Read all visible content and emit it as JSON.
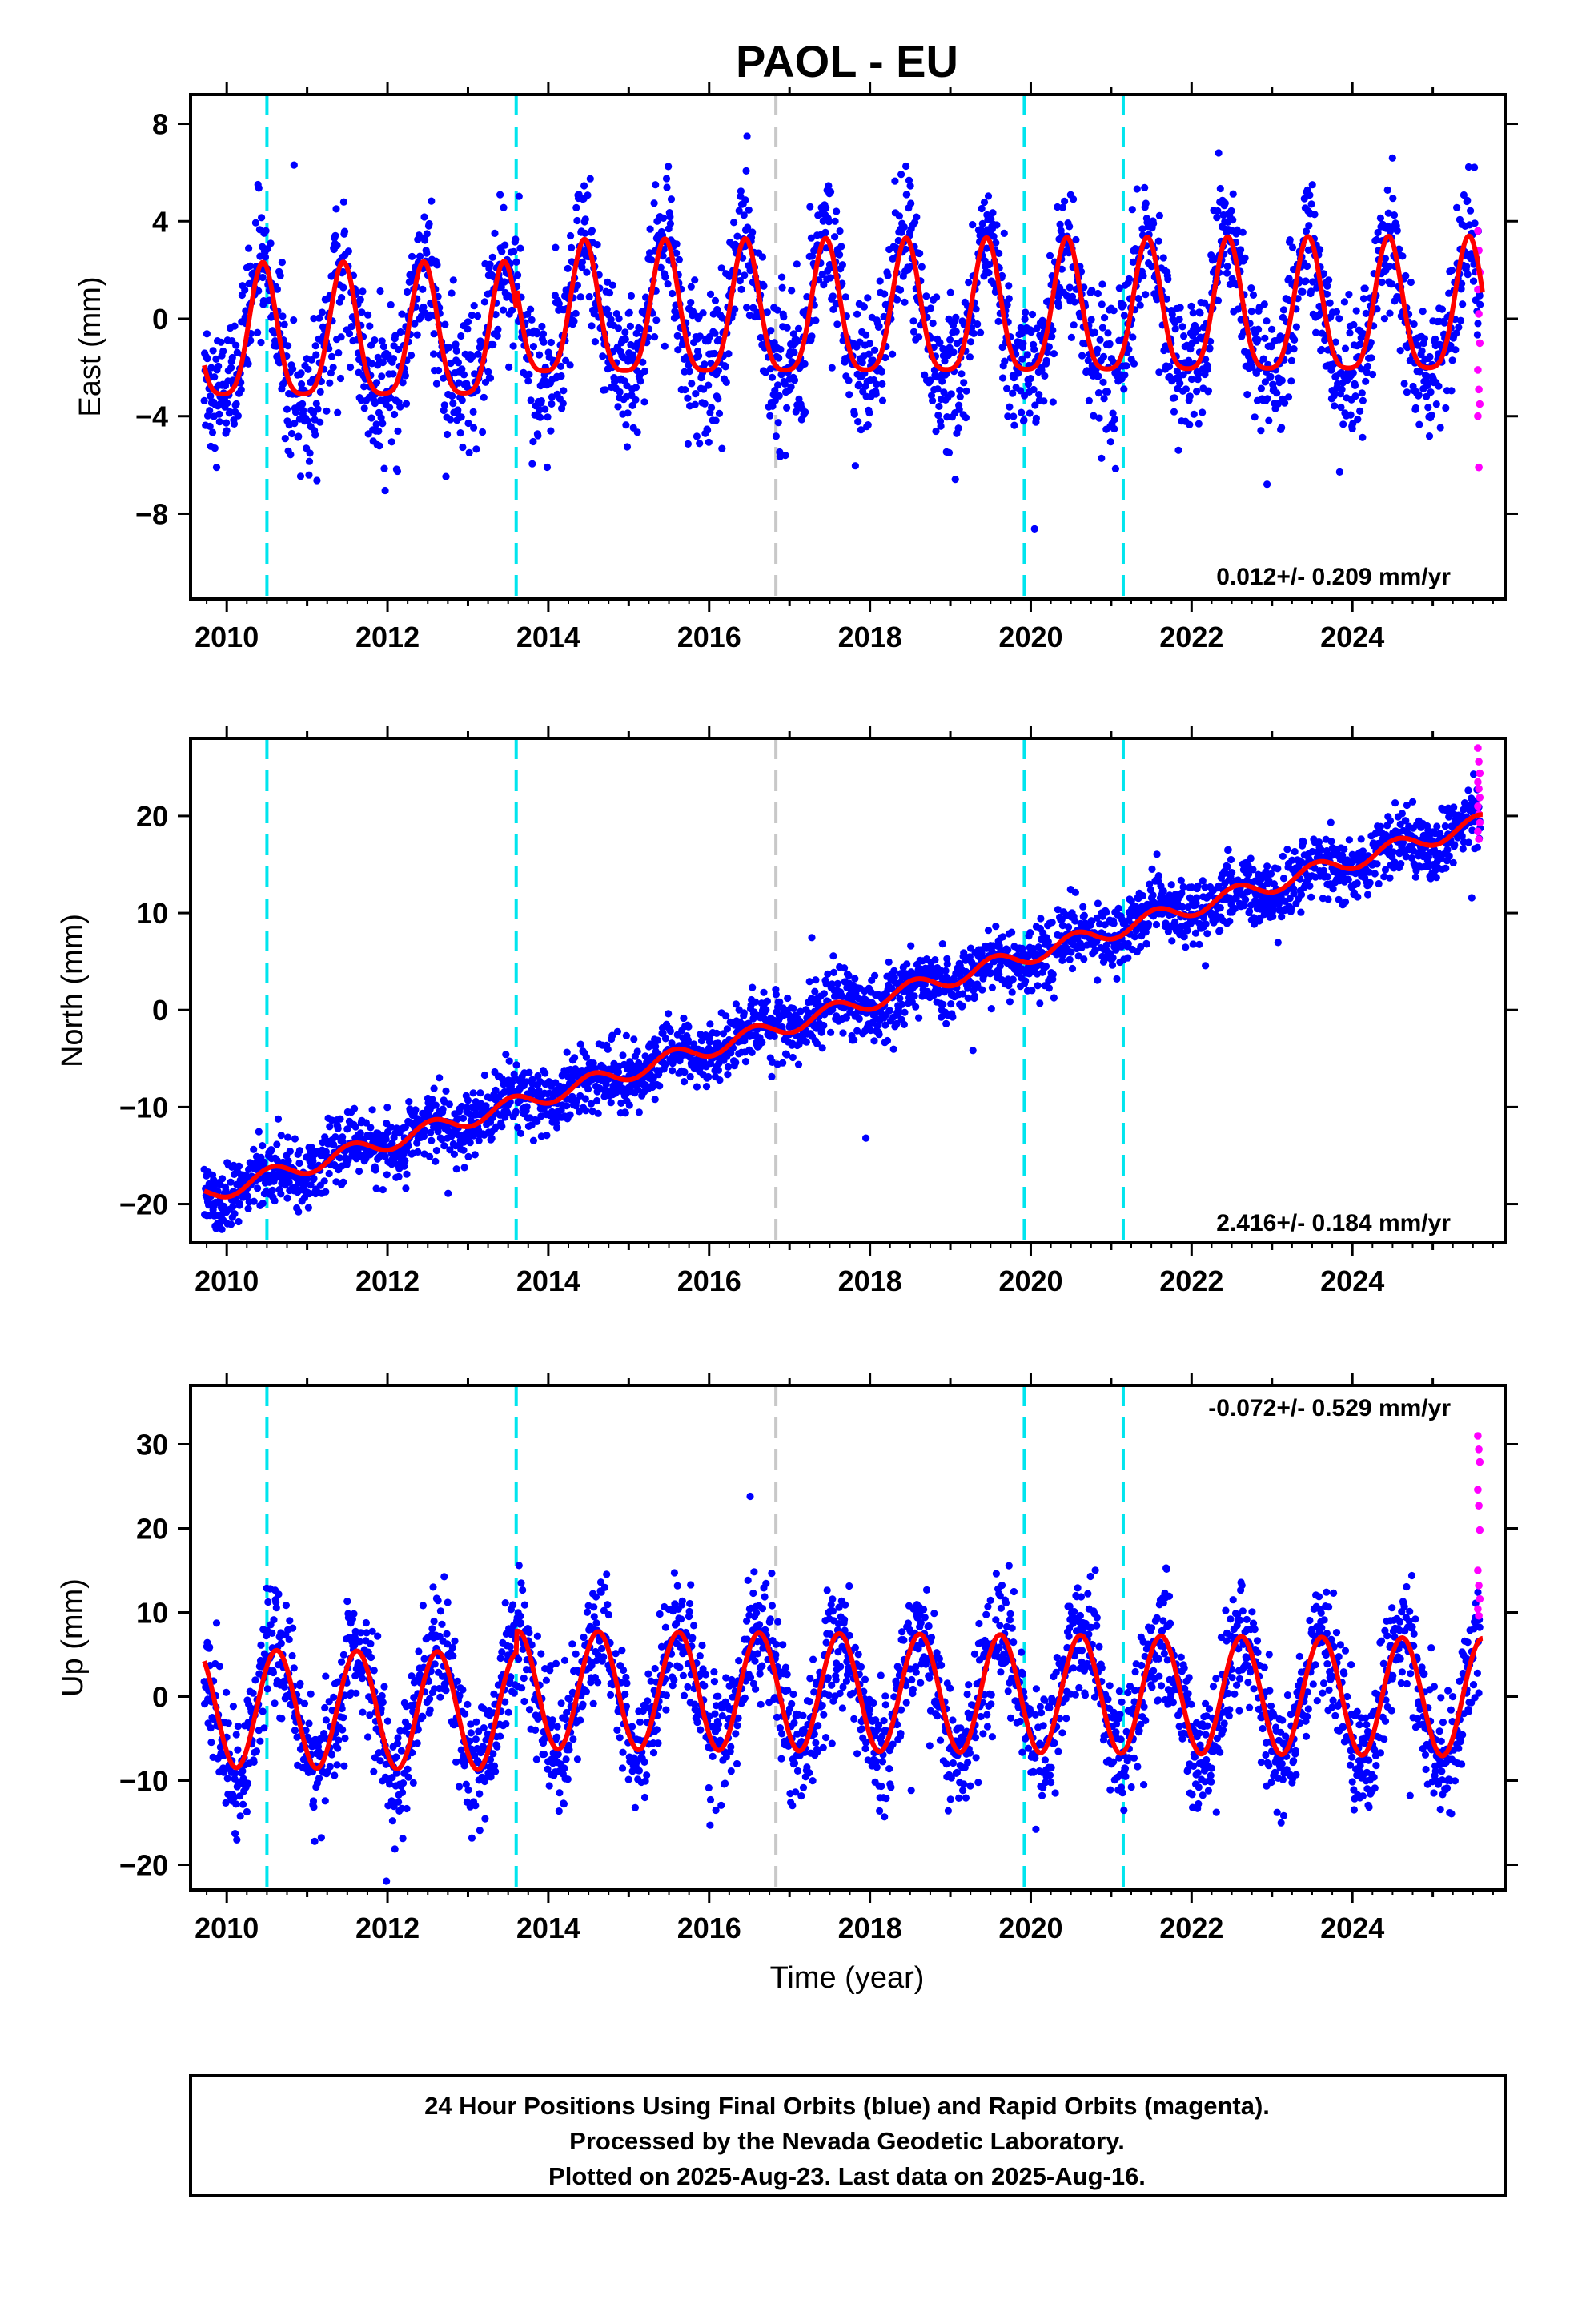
{
  "title": "PAOL - EU",
  "x_axis_label": "Time (year)",
  "footer": {
    "line1": "24 Hour Positions Using Final Orbits (blue) and Rapid Orbits (magenta).",
    "line2": "Processed by the Nevada Geodetic Laboratory.",
    "line3": "Plotted on 2025-Aug-23. Last data on 2025-Aug-16."
  },
  "colors": {
    "final_orbits": "#0000ff",
    "rapid_orbits": "#ff00ff",
    "model_fit": "#ff0000",
    "equipment_change": "#00e5ee",
    "other_event": "#c8c8c8"
  },
  "chart_data": [
    {
      "type": "scatter",
      "panel": "east",
      "ylabel": "East (mm)",
      "xlim": [
        2009.55,
        2025.9
      ],
      "ylim": [
        -11.5,
        9.2
      ],
      "x_ticks": [
        2010,
        2012,
        2014,
        2016,
        2018,
        2020,
        2022,
        2024
      ],
      "y_ticks": [
        -8,
        -4,
        0,
        4,
        8
      ],
      "rate_label": "0.012+/- 0.209 mm/yr",
      "trend": {
        "intercept": 0.0,
        "slope": 0.012,
        "ref_year": 2017.5
      },
      "seasonal": {
        "amplitude": 2.7,
        "peak_phase": 0.45,
        "semiannual": 0.6
      },
      "scatter_spread": 1.4,
      "offsets": [
        {
          "x": 2010.5,
          "dy": 0.0
        },
        {
          "x": 2013.6,
          "dy": 1.6
        },
        {
          "x": 2019.92,
          "dy": 0.0
        },
        {
          "x": 2021.15,
          "dy": 0.0
        }
      ],
      "step_segments": [
        {
          "from": 2009.7,
          "to": 2013.6,
          "shift": -0.9
        }
      ],
      "rapid_points": [
        3.6,
        2.8,
        1.9,
        1.2,
        0.2,
        -1.0,
        -2.1,
        -2.9,
        -3.5,
        -4.0,
        -6.1
      ],
      "legend": "none",
      "grid": false
    },
    {
      "type": "scatter",
      "panel": "north",
      "ylabel": "North (mm)",
      "xlim": [
        2009.55,
        2025.9
      ],
      "ylim": [
        -24,
        28
      ],
      "x_ticks": [
        2010,
        2012,
        2014,
        2016,
        2018,
        2020,
        2022,
        2024
      ],
      "y_ticks": [
        -20,
        -10,
        0,
        10,
        20
      ],
      "rate_label": "2.416+/- 0.184 mm/yr",
      "trend": {
        "intercept": -1.5,
        "slope": 2.416,
        "ref_year": 2017.0
      },
      "seasonal": {
        "amplitude": 0.9,
        "peak_phase": 0.55,
        "semiannual": 0.0
      },
      "scatter_spread": 1.7,
      "offsets": [],
      "step_segments": [],
      "rapid_points": [
        27.0,
        25.6,
        24.4,
        23.5,
        22.8,
        21.9,
        21.0,
        20.2,
        19.3,
        18.4,
        17.6
      ],
      "legend": "none",
      "grid": false
    },
    {
      "type": "scatter",
      "panel": "up",
      "ylabel": "Up (mm)",
      "xlim": [
        2009.55,
        2025.9
      ],
      "ylim": [
        -23,
        37
      ],
      "x_ticks": [
        2010,
        2012,
        2014,
        2016,
        2018,
        2020,
        2022,
        2024
      ],
      "y_ticks": [
        -20,
        -10,
        0,
        10,
        20,
        30
      ],
      "rate_label": "-0.072+/- 0.529 mm/yr",
      "trend": {
        "intercept": 0.5,
        "slope": -0.072,
        "ref_year": 2017.5
      },
      "seasonal": {
        "amplitude": 7.0,
        "peak_phase": 0.62,
        "semiannual": 0.0
      },
      "scatter_spread": 3.6,
      "offsets": [],
      "step_segments": [
        {
          "from": 2009.7,
          "to": 2013.6,
          "shift": -2.5
        }
      ],
      "rapid_points": [
        31.0,
        29.4,
        27.9,
        24.6,
        22.7,
        19.8,
        15.0,
        13.2,
        11.6,
        10.4,
        9.6
      ],
      "legend": "none",
      "grid": false
    }
  ],
  "event_lines": [
    {
      "x": 2010.5,
      "kind": "equipment_change"
    },
    {
      "x": 2013.6,
      "kind": "equipment_change"
    },
    {
      "x": 2016.83,
      "kind": "other_event"
    },
    {
      "x": 2019.92,
      "kind": "equipment_change"
    },
    {
      "x": 2021.15,
      "kind": "equipment_change"
    }
  ],
  "data_span": {
    "start": 2009.72,
    "end": 2025.62
  }
}
